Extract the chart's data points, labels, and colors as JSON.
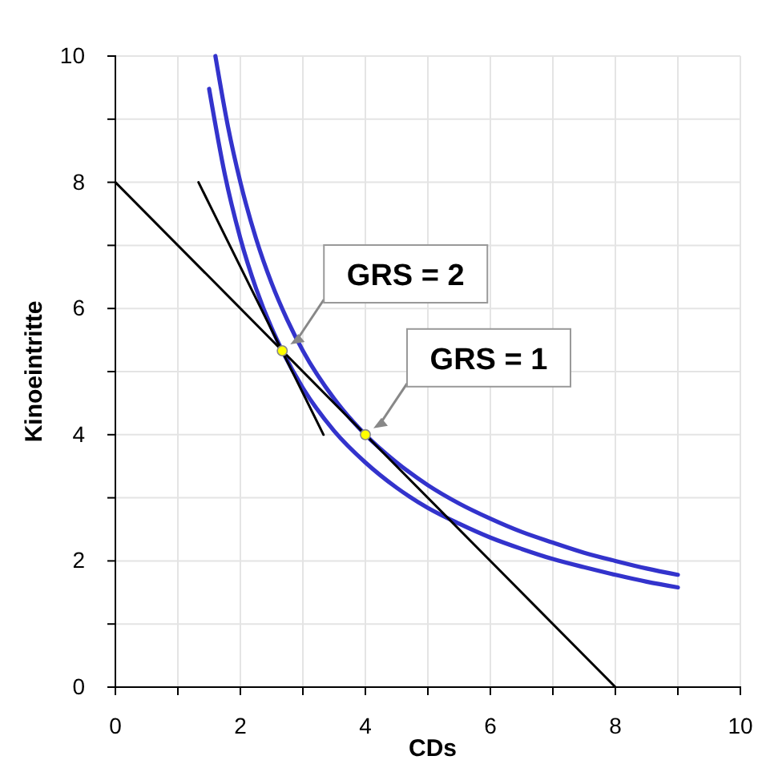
{
  "chart_data": {
    "type": "line",
    "xlabel": "CDs",
    "ylabel": "Kinoeintritte",
    "xlim": [
      0,
      10
    ],
    "ylim": [
      0,
      10
    ],
    "xticks": [
      0,
      {
        "value": 1,
        "label": null
      },
      2,
      {
        "value": 3,
        "label": null
      },
      4,
      {
        "value": 5,
        "label": null
      },
      6,
      {
        "value": 7,
        "label": null
      },
      8,
      {
        "value": 9,
        "label": null
      },
      10
    ],
    "yticks": [
      0,
      {
        "value": 1,
        "label": null
      },
      2,
      {
        "value": 3,
        "label": null
      },
      4,
      {
        "value": 5,
        "label": null
      },
      6,
      {
        "value": 7,
        "label": null
      },
      8,
      {
        "value": 9,
        "label": null
      },
      10
    ],
    "grid": true,
    "series": [
      {
        "color": "#3333cc",
        "x": [
          1.6,
          1.8,
          2,
          2.25,
          2.5,
          2.75,
          3,
          3.5,
          4,
          4.5,
          5,
          5.5,
          6,
          6.5,
          7,
          7.5,
          8,
          8.5,
          9
        ],
        "values": [
          10,
          8.89,
          8,
          7.11,
          6.4,
          5.82,
          5.33,
          4.57,
          4,
          3.56,
          3.2,
          2.91,
          2.67,
          2.46,
          2.29,
          2.13,
          2,
          1.88,
          1.78
        ]
      },
      {
        "color": "#3333cc",
        "x": [
          1.5,
          1.75,
          2,
          2.25,
          2.5,
          2.67,
          3,
          3.5,
          4,
          4.5,
          5,
          5.5,
          6,
          6.5,
          7,
          7.5,
          8,
          8.5,
          9
        ],
        "values": [
          9.48,
          8.13,
          7.11,
          6.32,
          5.69,
          5.33,
          4.74,
          4.06,
          3.56,
          3.16,
          2.84,
          2.59,
          2.37,
          2.19,
          2.03,
          1.9,
          1.78,
          1.67,
          1.58
        ]
      },
      {
        "color": "#000000",
        "x": [
          0,
          8
        ],
        "values": [
          8,
          0
        ]
      },
      {
        "color": "#000000",
        "x": [
          1.33,
          3.33
        ],
        "values": [
          8,
          4
        ]
      },
      {
        "type": "scatter",
        "color": "#ffff00",
        "marker": "circle",
        "x": [
          2.67,
          4
        ],
        "values": [
          5.33,
          4
        ]
      }
    ],
    "annotations": [
      {
        "text": "GRS = 2",
        "x": 2.67,
        "y": 5.33
      },
      {
        "text": "GRS = 1",
        "x": 4,
        "y": 4
      }
    ]
  }
}
